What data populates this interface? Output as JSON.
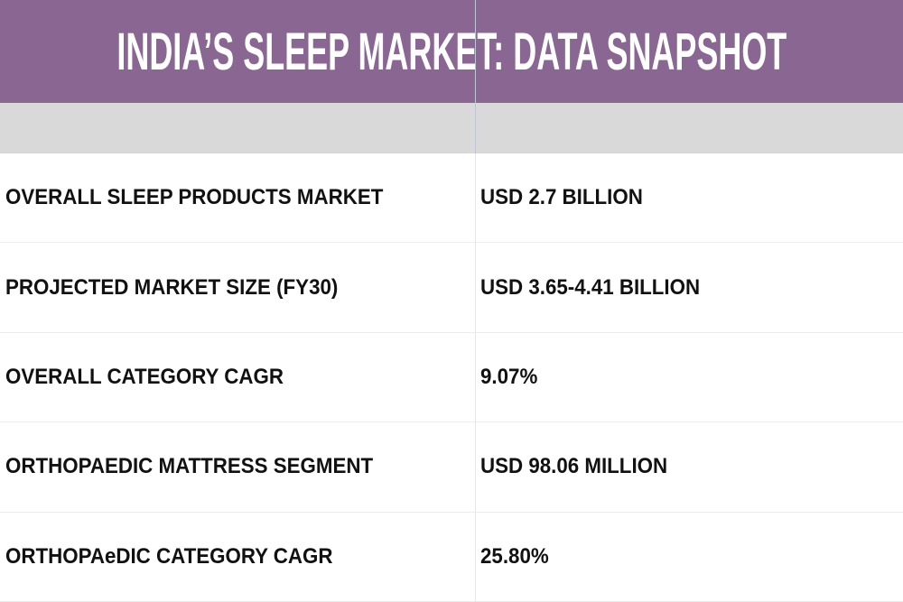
{
  "title": "INDIA’S SLEEP MARKET: DATA SNAPSHOT",
  "colors": {
    "header": "#8a6793",
    "band": "#d9d9d9"
  },
  "rows": [
    {
      "label": "OVERALL SLEEP PRODUCTS MARKET",
      "value": "USD 2.7 BILLION"
    },
    {
      "label": "PROJECTED MARKET SIZE (FY30)",
      "value": "USD 3.65-4.41 BILLION"
    },
    {
      "label": "OVERALL CATEGORY CAGR",
      "value": "9.07%"
    },
    {
      "label": "ORTHOPAEDIC MATTRESS SEGMENT",
      "value": "USD 98.06 MILLION"
    },
    {
      "label": "ORTHOPAeDIC CATEGORY CAGR",
      "value": "25.80%"
    }
  ]
}
